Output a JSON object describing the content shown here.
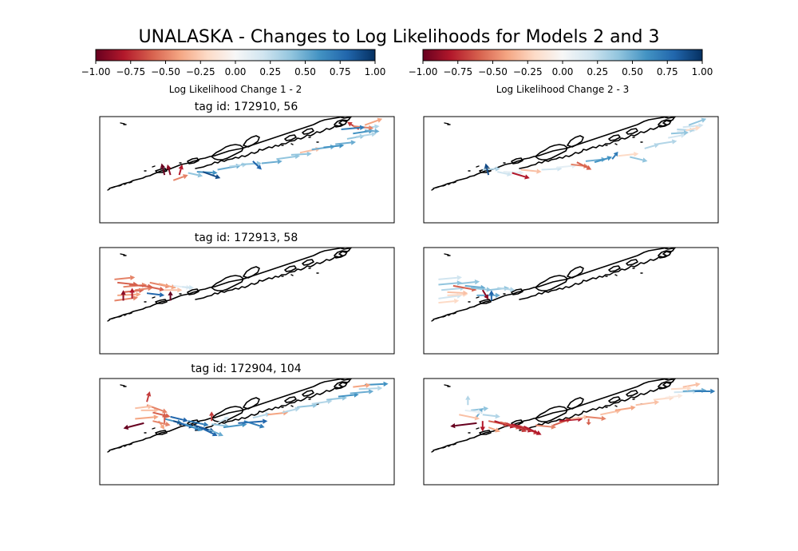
{
  "figure": {
    "title": "UNALASKA - Changes to Log Likelihoods for Models 2 and 3"
  },
  "chart_data": {
    "type": "quiver-map",
    "colormap": {
      "name": "RdBu",
      "stops": [
        "#67001f",
        "#b2182b",
        "#d6604d",
        "#f4a582",
        "#fddbc7",
        "#f7f7f7",
        "#d1e5f0",
        "#92c5de",
        "#4393c3",
        "#2166ac",
        "#053061"
      ]
    },
    "colorbars": [
      {
        "label": "Log Likelihood Change 1 - 2",
        "vmin": -1.0,
        "vmax": 1.0,
        "ticks": [
          "−1.00",
          "−0.75",
          "−0.50",
          "−0.25",
          "0.00",
          "0.25",
          "0.50",
          "0.75",
          "1.00"
        ]
      },
      {
        "label": "Log Likelihood Change 2 - 3",
        "vmin": -1.0,
        "vmax": 1.0,
        "ticks": [
          "−1.00",
          "−0.75",
          "−0.50",
          "−0.25",
          "0.00",
          "0.25",
          "0.50",
          "0.75",
          "1.00"
        ]
      }
    ],
    "rows": [
      {
        "title": "tag id: 172910, 56",
        "arrows_12": [
          [
            0.25,
            0.6,
            0.3,
            0.55,
            -0.5
          ],
          [
            0.22,
            0.55,
            0.21,
            0.44,
            -1.0
          ],
          [
            0.24,
            0.55,
            0.23,
            0.45,
            -0.9
          ],
          [
            0.27,
            0.55,
            0.28,
            0.45,
            -0.8
          ],
          [
            0.3,
            0.53,
            0.35,
            0.56,
            0.4
          ],
          [
            0.33,
            0.52,
            0.4,
            0.53,
            0.6
          ],
          [
            0.35,
            0.52,
            0.41,
            0.58,
            0.9
          ],
          [
            0.4,
            0.5,
            0.48,
            0.46,
            0.5
          ],
          [
            0.44,
            0.47,
            0.5,
            0.45,
            0.3
          ],
          [
            0.48,
            0.45,
            0.55,
            0.44,
            0.4
          ],
          [
            0.52,
            0.42,
            0.55,
            0.5,
            0.8
          ],
          [
            0.55,
            0.44,
            0.62,
            0.42,
            0.5
          ],
          [
            0.6,
            0.4,
            0.68,
            0.37,
            0.4
          ],
          [
            0.65,
            0.36,
            0.72,
            0.35,
            0.4
          ],
          [
            0.68,
            0.34,
            0.75,
            0.3,
            -0.3
          ],
          [
            0.72,
            0.31,
            0.8,
            0.28,
            0.5
          ],
          [
            0.76,
            0.29,
            0.83,
            0.27,
            0.6
          ],
          [
            0.8,
            0.26,
            0.87,
            0.24,
            0.5
          ],
          [
            0.84,
            0.21,
            0.9,
            0.18,
            0.4
          ],
          [
            0.86,
            0.16,
            0.93,
            0.13,
            0.6
          ],
          [
            0.89,
            0.11,
            0.95,
            0.09,
            0.3
          ],
          [
            0.9,
            0.08,
            0.96,
            0.02,
            -0.4
          ],
          [
            0.88,
            0.12,
            0.84,
            0.05,
            -0.7
          ],
          [
            0.86,
            0.09,
            0.93,
            0.11,
            -0.5
          ],
          [
            0.82,
            0.12,
            0.9,
            0.1,
            0.7
          ],
          [
            0.9,
            0.13,
            0.95,
            0.14,
            0.5
          ],
          [
            0.87,
            0.19,
            0.94,
            0.16,
            0.3
          ]
        ],
        "arrows_23": [
          [
            0.2,
            0.5,
            0.26,
            0.49,
            0.3
          ],
          [
            0.22,
            0.55,
            0.21,
            0.44,
            0.9
          ],
          [
            0.25,
            0.52,
            0.3,
            0.55,
            0.2
          ],
          [
            0.27,
            0.52,
            0.34,
            0.53,
            0.1
          ],
          [
            0.3,
            0.53,
            0.36,
            0.58,
            -0.8
          ],
          [
            0.33,
            0.5,
            0.4,
            0.52,
            -0.3
          ],
          [
            0.4,
            0.5,
            0.47,
            0.49,
            0.2
          ],
          [
            0.45,
            0.48,
            0.52,
            0.46,
            0.1
          ],
          [
            0.5,
            0.45,
            0.56,
            0.47,
            -0.5
          ],
          [
            0.52,
            0.43,
            0.57,
            0.5,
            -0.6
          ],
          [
            0.55,
            0.42,
            0.62,
            0.4,
            0.5
          ],
          [
            0.58,
            0.43,
            0.64,
            0.38,
            0.6
          ],
          [
            0.64,
            0.4,
            0.66,
            0.33,
            0.7
          ],
          [
            0.66,
            0.37,
            0.73,
            0.35,
            -0.2
          ],
          [
            0.7,
            0.38,
            0.76,
            0.42,
            0.4
          ],
          [
            0.75,
            0.3,
            0.8,
            0.26,
            0.3
          ],
          [
            0.79,
            0.26,
            0.86,
            0.23,
            0.3
          ],
          [
            0.83,
            0.2,
            0.89,
            0.17,
            0.2
          ],
          [
            0.86,
            0.14,
            0.93,
            0.12,
            0.1
          ],
          [
            0.88,
            0.1,
            0.95,
            0.08,
            0.2
          ],
          [
            0.9,
            0.08,
            0.96,
            0.02,
            0.4
          ],
          [
            0.86,
            0.12,
            0.92,
            0.13,
            0.3
          ],
          [
            0.89,
            0.13,
            0.94,
            0.1,
            -0.2
          ],
          [
            0.84,
            0.16,
            0.9,
            0.15,
            0.4
          ]
        ]
      },
      {
        "title": "tag id: 172913, 58",
        "arrows_12": [
          [
            0.05,
            0.3,
            0.12,
            0.28,
            -0.5
          ],
          [
            0.06,
            0.33,
            0.13,
            0.35,
            -0.6
          ],
          [
            0.08,
            0.37,
            0.16,
            0.35,
            -0.5
          ],
          [
            0.08,
            0.42,
            0.15,
            0.4,
            -0.6
          ],
          [
            0.05,
            0.5,
            0.13,
            0.47,
            -0.5
          ],
          [
            0.06,
            0.45,
            0.14,
            0.44,
            -0.4
          ],
          [
            0.1,
            0.35,
            0.18,
            0.37,
            -0.6
          ],
          [
            0.12,
            0.4,
            0.18,
            0.38,
            -0.5
          ],
          [
            0.16,
            0.43,
            0.22,
            0.45,
            0.8
          ],
          [
            0.15,
            0.36,
            0.22,
            0.4,
            -0.6
          ],
          [
            0.17,
            0.33,
            0.24,
            0.37,
            -0.5
          ],
          [
            0.2,
            0.34,
            0.26,
            0.38,
            -0.4
          ],
          [
            0.22,
            0.4,
            0.28,
            0.4,
            -0.3
          ],
          [
            0.25,
            0.36,
            0.31,
            0.38,
            0.1
          ],
          [
            0.08,
            0.5,
            0.08,
            0.4,
            -0.9
          ],
          [
            0.11,
            0.48,
            0.11,
            0.38,
            -0.8
          ],
          [
            0.24,
            0.5,
            0.24,
            0.41,
            -1.0
          ],
          [
            0.28,
            0.37,
            0.32,
            0.38,
            0.2
          ]
        ],
        "arrows_23": [
          [
            0.05,
            0.3,
            0.13,
            0.28,
            0.2
          ],
          [
            0.05,
            0.35,
            0.13,
            0.33,
            0.4
          ],
          [
            0.06,
            0.4,
            0.14,
            0.38,
            0.3
          ],
          [
            0.05,
            0.48,
            0.13,
            0.45,
            0.2
          ],
          [
            0.08,
            0.45,
            0.15,
            0.44,
            -0.2
          ],
          [
            0.1,
            0.36,
            0.18,
            0.4,
            -0.6
          ],
          [
            0.12,
            0.34,
            0.19,
            0.32,
            0.4
          ],
          [
            0.14,
            0.36,
            0.21,
            0.38,
            0.5
          ],
          [
            0.16,
            0.38,
            0.23,
            0.4,
            0.4
          ],
          [
            0.18,
            0.45,
            0.26,
            0.45,
            0.5
          ],
          [
            0.2,
            0.4,
            0.22,
            0.49,
            -0.9
          ],
          [
            0.23,
            0.5,
            0.23,
            0.4,
            0.8
          ],
          [
            0.22,
            0.4,
            0.29,
            0.38,
            0.4
          ],
          [
            0.25,
            0.38,
            0.31,
            0.4,
            0.3
          ],
          [
            0.08,
            0.42,
            0.15,
            0.43,
            -0.3
          ],
          [
            0.05,
            0.52,
            0.12,
            0.5,
            -0.2
          ]
        ]
      },
      {
        "title": "tag id: 172904, 104",
        "arrows_12": [
          [
            0.15,
            0.42,
            0.08,
            0.47,
            -1.0
          ],
          [
            0.12,
            0.38,
            0.2,
            0.36,
            -0.4
          ],
          [
            0.14,
            0.3,
            0.2,
            0.3,
            -0.3
          ],
          [
            0.16,
            0.25,
            0.23,
            0.32,
            -0.5
          ],
          [
            0.16,
            0.22,
            0.17,
            0.12,
            -0.7
          ],
          [
            0.18,
            0.32,
            0.24,
            0.36,
            -0.6
          ],
          [
            0.2,
            0.4,
            0.22,
            0.48,
            -0.4
          ],
          [
            0.22,
            0.38,
            0.28,
            0.42,
            0.6
          ],
          [
            0.24,
            0.36,
            0.3,
            0.4,
            0.8
          ],
          [
            0.25,
            0.4,
            0.32,
            0.46,
            0.9
          ],
          [
            0.27,
            0.42,
            0.34,
            0.48,
            0.8
          ],
          [
            0.29,
            0.43,
            0.35,
            0.49,
            0.6
          ],
          [
            0.3,
            0.4,
            0.37,
            0.44,
            0.7
          ],
          [
            0.32,
            0.44,
            0.39,
            0.5,
            0.9
          ],
          [
            0.34,
            0.46,
            0.4,
            0.54,
            0.8
          ],
          [
            0.37,
            0.48,
            0.42,
            0.54,
            0.5
          ],
          [
            0.38,
            0.43,
            0.44,
            0.45,
            0.4
          ],
          [
            0.4,
            0.42,
            0.44,
            0.36,
            0.2
          ],
          [
            0.42,
            0.46,
            0.5,
            0.43,
            0.6
          ],
          [
            0.47,
            0.42,
            0.57,
            0.4,
            0.8
          ],
          [
            0.49,
            0.4,
            0.56,
            0.46,
            0.7
          ],
          [
            0.52,
            0.37,
            0.58,
            0.33,
            0.3
          ],
          [
            0.57,
            0.34,
            0.64,
            0.32,
            -0.4
          ],
          [
            0.62,
            0.32,
            0.68,
            0.28,
            0.3
          ],
          [
            0.67,
            0.27,
            0.74,
            0.25,
            0.4
          ],
          [
            0.72,
            0.24,
            0.79,
            0.21,
            0.3
          ],
          [
            0.77,
            0.2,
            0.84,
            0.18,
            0.4
          ],
          [
            0.81,
            0.17,
            0.88,
            0.15,
            0.6
          ],
          [
            0.85,
            0.14,
            0.93,
            0.12,
            0.5
          ],
          [
            0.88,
            0.1,
            0.96,
            0.09,
            0.3
          ],
          [
            0.9,
            0.06,
            0.98,
            0.05,
            0.6
          ],
          [
            0.86,
            0.08,
            0.92,
            0.06,
            -0.4
          ],
          [
            0.22,
            0.42,
            0.22,
            0.32,
            -0.6
          ],
          [
            0.38,
            0.4,
            0.38,
            0.31,
            -0.7
          ],
          [
            0.12,
            0.28,
            0.18,
            0.26,
            -0.3
          ],
          [
            0.18,
            0.4,
            0.24,
            0.44,
            -0.5
          ]
        ],
        "arrows_23": [
          [
            0.18,
            0.42,
            0.09,
            0.45,
            -1.0
          ],
          [
            0.12,
            0.34,
            0.19,
            0.38,
            -0.3
          ],
          [
            0.15,
            0.25,
            0.15,
            0.16,
            0.3
          ],
          [
            0.16,
            0.3,
            0.22,
            0.28,
            0.4
          ],
          [
            0.18,
            0.36,
            0.2,
            0.28,
            0.5
          ],
          [
            0.2,
            0.34,
            0.26,
            0.36,
            0.3
          ],
          [
            0.2,
            0.4,
            0.2,
            0.5,
            -0.8
          ],
          [
            0.22,
            0.4,
            0.29,
            0.44,
            -0.6
          ],
          [
            0.24,
            0.4,
            0.31,
            0.46,
            -0.8
          ],
          [
            0.26,
            0.41,
            0.33,
            0.47,
            -0.6
          ],
          [
            0.28,
            0.42,
            0.35,
            0.5,
            -0.7
          ],
          [
            0.3,
            0.43,
            0.37,
            0.5,
            -0.8
          ],
          [
            0.32,
            0.44,
            0.39,
            0.52,
            -0.7
          ],
          [
            0.34,
            0.45,
            0.4,
            0.53,
            -0.8
          ],
          [
            0.38,
            0.44,
            0.45,
            0.46,
            -0.5
          ],
          [
            0.44,
            0.44,
            0.5,
            0.38,
            -0.6
          ],
          [
            0.46,
            0.4,
            0.54,
            0.38,
            -0.8
          ],
          [
            0.5,
            0.38,
            0.56,
            0.36,
            -0.3
          ],
          [
            0.55,
            0.36,
            0.62,
            0.38,
            -0.5
          ],
          [
            0.6,
            0.34,
            0.67,
            0.3,
            -0.3
          ],
          [
            0.65,
            0.3,
            0.72,
            0.27,
            -0.4
          ],
          [
            0.72,
            0.25,
            0.8,
            0.22,
            -0.3
          ],
          [
            0.78,
            0.2,
            0.85,
            0.18,
            -0.2
          ],
          [
            0.82,
            0.18,
            0.88,
            0.16,
            -0.1
          ],
          [
            0.85,
            0.13,
            0.93,
            0.12,
            0.2
          ],
          [
            0.88,
            0.12,
            0.96,
            0.11,
            0.5
          ],
          [
            0.92,
            0.12,
            0.99,
            0.12,
            0.7
          ],
          [
            0.88,
            0.08,
            0.94,
            0.05,
            -0.3
          ],
          [
            0.84,
            0.1,
            0.91,
            0.09,
            -0.2
          ],
          [
            0.14,
            0.3,
            0.2,
            0.32,
            0.1
          ],
          [
            0.22,
            0.46,
            0.26,
            0.5,
            -0.4
          ],
          [
            0.56,
            0.38,
            0.56,
            0.44,
            -0.6
          ]
        ]
      }
    ]
  }
}
